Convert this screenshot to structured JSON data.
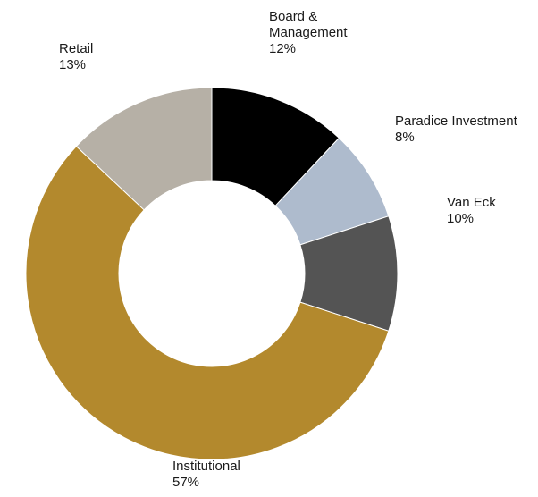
{
  "chart_data": {
    "type": "pie",
    "style": "donut",
    "title": "",
    "slices": [
      {
        "name_lines": [
          "Board &",
          "Management"
        ],
        "pct_label": "12%",
        "value": 12,
        "color": "#000000"
      },
      {
        "name_lines": [
          "Paradice Investment"
        ],
        "pct_label": "8%",
        "value": 8,
        "color": "#aebbcd"
      },
      {
        "name_lines": [
          "Van Eck"
        ],
        "pct_label": "10%",
        "value": 10,
        "color": "#545454"
      },
      {
        "name_lines": [
          "Institutional"
        ],
        "pct_label": "57%",
        "value": 57,
        "color": "#b3892d"
      },
      {
        "name_lines": [
          "Retail"
        ],
        "pct_label": "13%",
        "value": 13,
        "color": "#b6b0a6"
      }
    ],
    "legend": "none",
    "data_labels": "outside"
  }
}
